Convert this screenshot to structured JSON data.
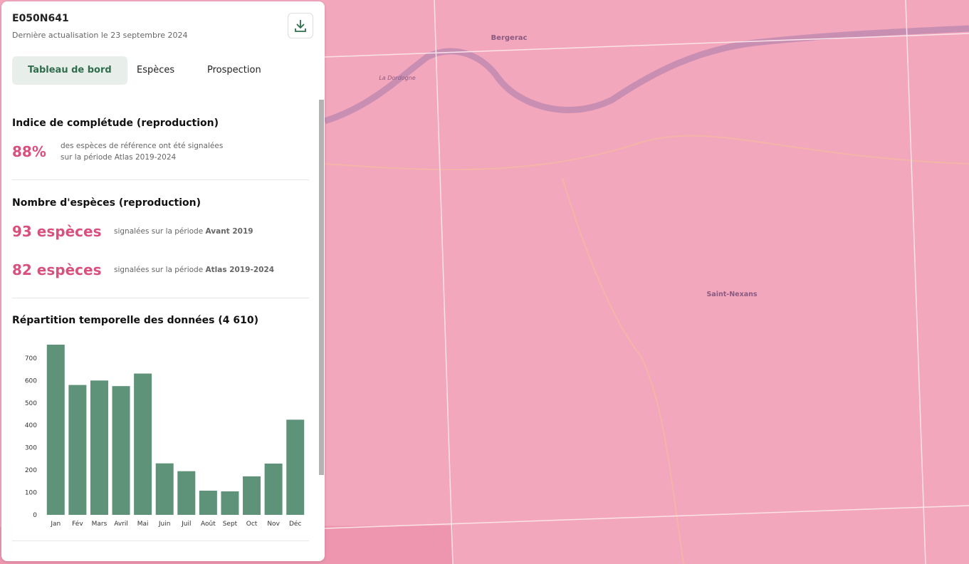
{
  "header": {
    "code": "E050N641",
    "updated": "Dernière actualisation le 23 septembre 2024"
  },
  "tabs": [
    "Tableau de bord",
    "Espèces",
    "Prospection"
  ],
  "completeness": {
    "title": "Indice de complétude (reproduction)",
    "value": "88%",
    "description": [
      "des espèces de référence ont été signalées",
      "sur la période Atlas 2019-2024"
    ]
  },
  "species": {
    "title": "Nombre d'espèces (reproduction)",
    "rows": [
      {
        "value": "93 espèces",
        "text": "signalées sur la période",
        "period": "Avant 2019"
      },
      {
        "value": "82 espèces",
        "text": "signalées sur la période",
        "period": "Atlas 2019-2024"
      }
    ]
  },
  "chart": {
    "type": "bar",
    "title": "Répartition temporelle des données (4 610)",
    "categories": [
      "Jan",
      "Fév",
      "Mars",
      "Avril",
      "Mai",
      "Juin",
      "Juil",
      "Août",
      "Sept",
      "Oct",
      "Nov",
      "Déc"
    ],
    "values": [
      760,
      580,
      600,
      575,
      631,
      230,
      195,
      108,
      105,
      172,
      229,
      425
    ],
    "color": "#5e9279",
    "ylim": [
      0,
      760
    ],
    "yticks": [
      0,
      100,
      200,
      300,
      400,
      500,
      600,
      700
    ]
  },
  "map": {
    "labels": [
      "Bergerac",
      "La Dordogne",
      "Saint-Nexans"
    ]
  }
}
